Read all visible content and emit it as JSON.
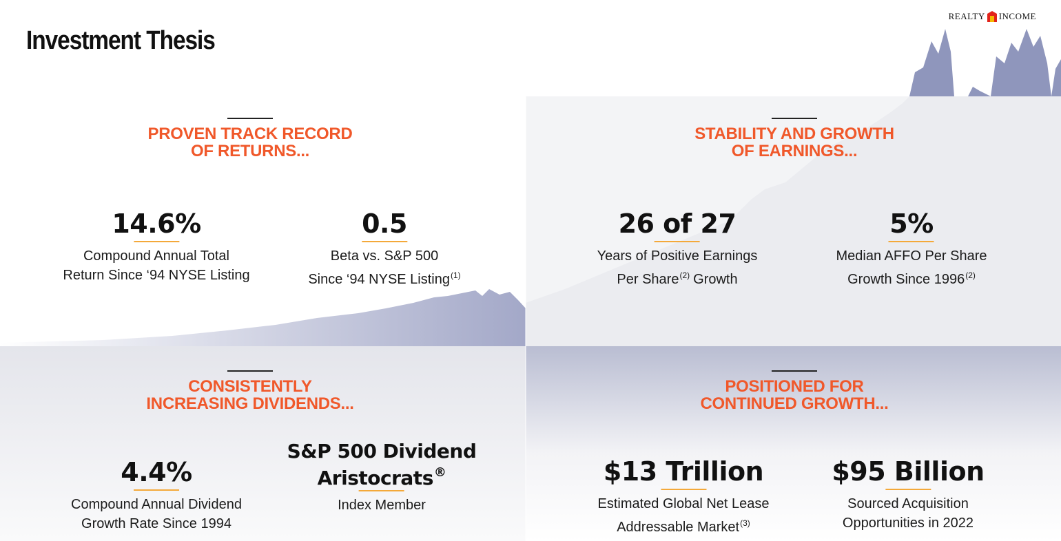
{
  "header": {
    "title": "Investment Thesis",
    "logo": {
      "left": "REALTY",
      "right": "INCOME"
    }
  },
  "quadrants": [
    {
      "heading": [
        "PROVEN TRACK RECORD",
        "OF RETURNS..."
      ],
      "stats": [
        {
          "value": [
            {
              "text": "14.6%"
            }
          ],
          "description": [
            {
              "text": "Compound Annual Total"
            },
            {
              "text": "Return Since ‘94 NYSE Listing"
            }
          ]
        },
        {
          "value": [
            {
              "text": "0.5"
            }
          ],
          "description": [
            {
              "text": "Beta vs. S&P 500"
            },
            {
              "text": "Since ‘94 NYSE Listing",
              "sup": "(1)"
            }
          ]
        }
      ]
    },
    {
      "heading": [
        "STABILITY AND GROWTH",
        "OF EARNINGS..."
      ],
      "stats": [
        {
          "value": [
            {
              "text": "26 of 27"
            }
          ],
          "description": [
            {
              "text": "Years of Positive Earnings"
            },
            {
              "text": "Per Share",
              "sup": "(2)",
              "after": "Growth"
            }
          ]
        },
        {
          "value": [
            {
              "text": "5%"
            }
          ],
          "description": [
            {
              "text": "Median AFFO Per Share"
            },
            {
              "text": "Growth Since 1996",
              "sup": "(2)"
            }
          ]
        }
      ]
    },
    {
      "heading": [
        "CONSISTENTLY",
        "INCREASING DIVIDENDS..."
      ],
      "stats": [
        {
          "value": [
            {
              "text": "4.4%"
            }
          ],
          "description": [
            {
              "text": "Compound Annual Dividend"
            },
            {
              "text": "Growth Rate Since 1994"
            }
          ]
        },
        {
          "value": [
            {
              "text": "S&P 500 Dividend"
            },
            {
              "text": "Aristocrats",
              "sup": "®"
            }
          ],
          "description": [
            {
              "text": "Index Member"
            }
          ]
        }
      ]
    },
    {
      "heading": [
        "POSITIONED FOR",
        "CONTINUED GROWTH..."
      ],
      "stats": [
        {
          "value": [
            {
              "text": "$13 Trillion"
            }
          ],
          "description": [
            {
              "text": "Estimated Global Net Lease"
            },
            {
              "text": "Addressable Market",
              "sup": "(3)"
            }
          ]
        },
        {
          "value": [
            {
              "text": "$95 Billion"
            }
          ],
          "description": [
            {
              "text": "Sourced Acquisition"
            },
            {
              "text": "Opportunities in 2022"
            }
          ]
        }
      ]
    }
  ]
}
